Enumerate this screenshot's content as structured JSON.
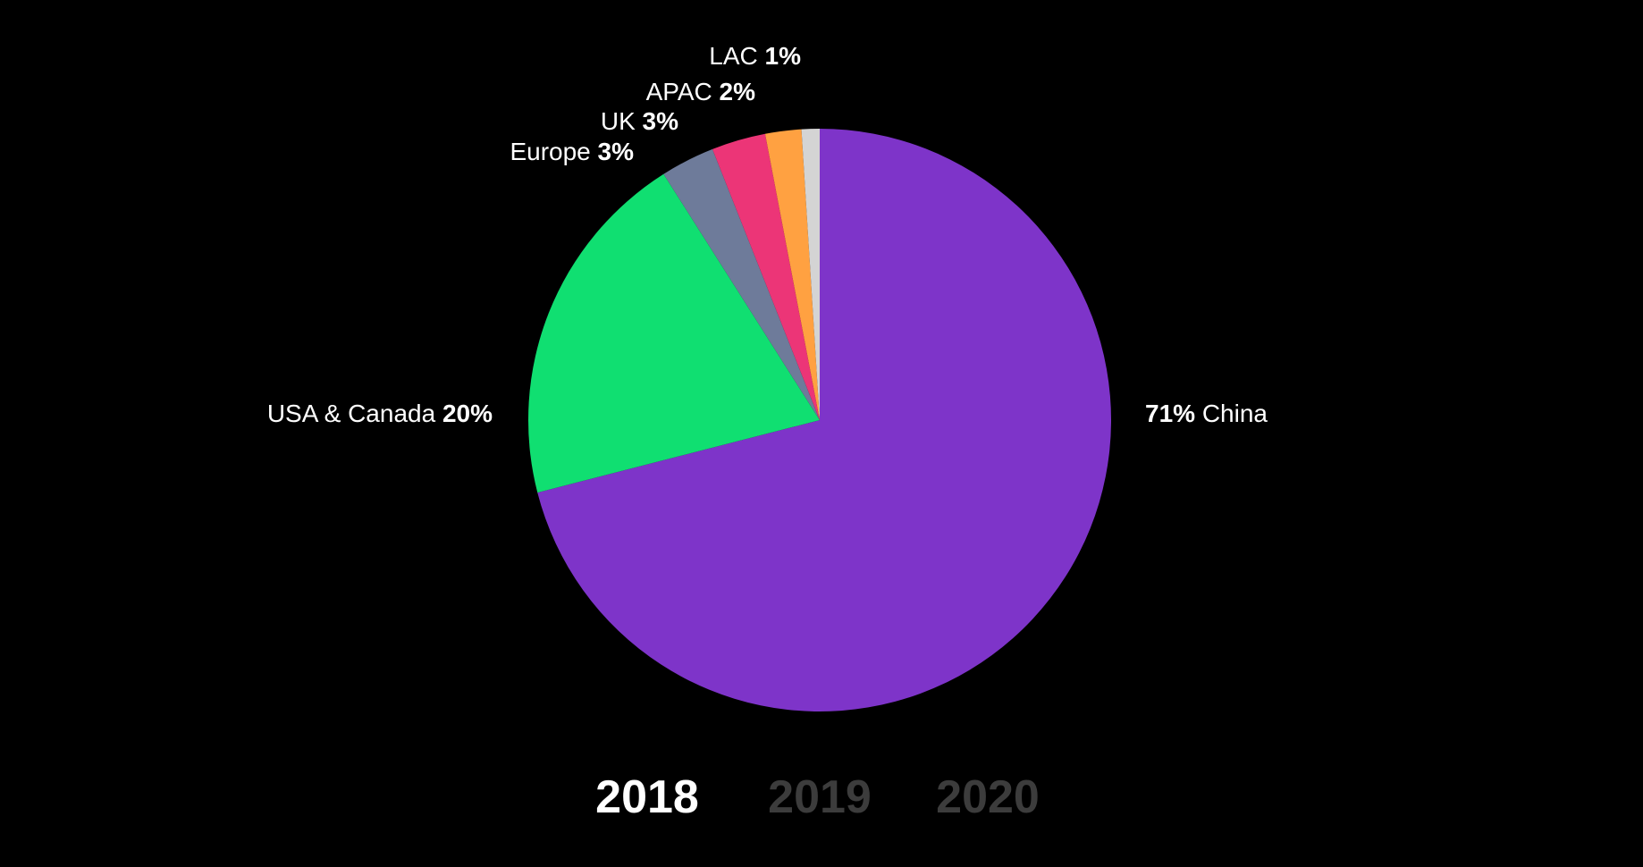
{
  "chart_data": {
    "type": "pie",
    "start_angle_deg": 0,
    "direction": "clockwise",
    "slices": [
      {
        "name": "China",
        "value": 71,
        "label_pct": "71%",
        "color": "#7e34c9",
        "label_side": "right",
        "label_order": "pct-first"
      },
      {
        "name": "USA & Canada",
        "value": 20,
        "label_pct": "20%",
        "color": "#10df71",
        "label_side": "left",
        "label_order": "name-first"
      },
      {
        "name": "Europe",
        "value": 3,
        "label_pct": "3%",
        "color": "#6e7b9a",
        "label_side": "left",
        "label_order": "name-first"
      },
      {
        "name": "UK",
        "value": 3,
        "label_pct": "3%",
        "color": "#ec3577",
        "label_side": "left",
        "label_order": "name-first"
      },
      {
        "name": "APAC",
        "value": 2,
        "label_pct": "2%",
        "color": "#ffa141",
        "label_side": "left",
        "label_order": "name-first"
      },
      {
        "name": "LAC",
        "value": 1,
        "label_pct": "1%",
        "color": "#d4d4d4",
        "label_side": "left",
        "label_order": "name-first"
      }
    ]
  },
  "year_tabs": {
    "items": [
      {
        "label": "2018",
        "active": true
      },
      {
        "label": "2019",
        "active": false
      },
      {
        "label": "2020",
        "active": false
      }
    ]
  },
  "colors": {
    "background": "#000000",
    "label_text": "#ffffff",
    "inactive_tab": "#3c3c3c"
  }
}
